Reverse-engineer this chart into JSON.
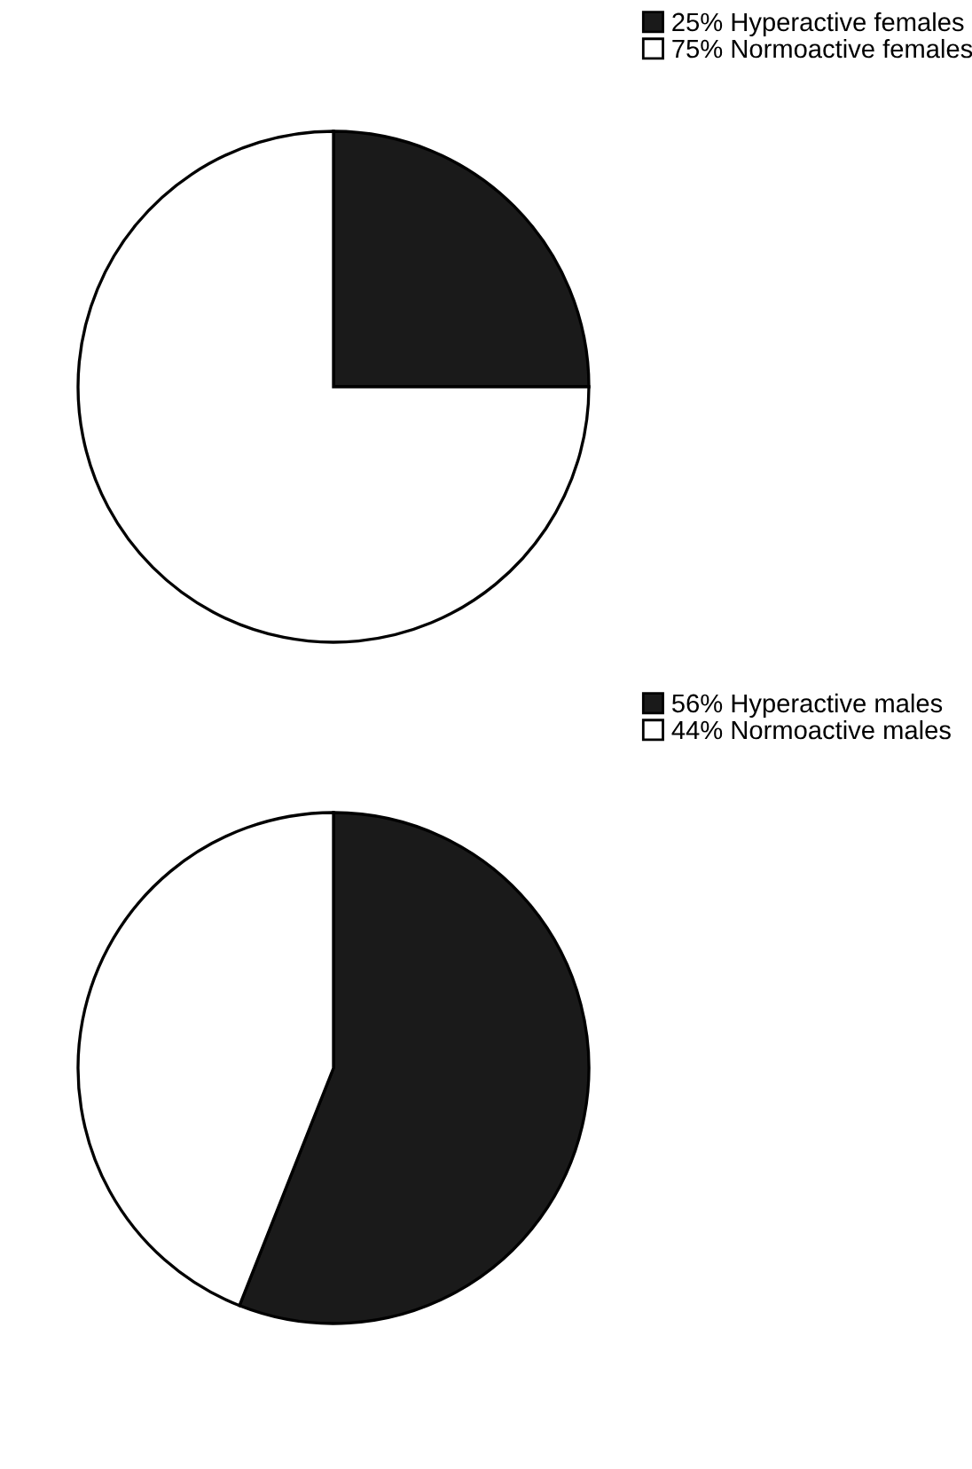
{
  "chart_data": [
    {
      "type": "pie",
      "categories": [
        "25% Hyperactive females",
        "75% Normoactive females"
      ],
      "values": [
        25,
        75
      ],
      "colors": [
        "#1a1a1a",
        "#ffffff"
      ],
      "legend": "top right"
    },
    {
      "type": "pie",
      "categories": [
        "56% Hyperactive males",
        "44% Normoactive males"
      ],
      "values": [
        56,
        44
      ],
      "colors": [
        "#1a1a1a",
        "#ffffff"
      ],
      "legend": "top right"
    }
  ]
}
